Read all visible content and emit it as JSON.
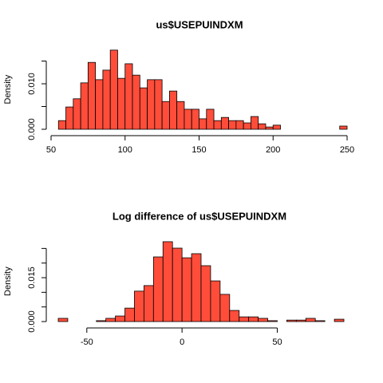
{
  "chart_data": [
    {
      "type": "histogram",
      "title": "us$USEPUINDXM",
      "ylabel": "Density",
      "color": "#ff4d3a",
      "bins": [
        55,
        60,
        65,
        70,
        75,
        80,
        85,
        90,
        95,
        100,
        105,
        110,
        115,
        120,
        125,
        130,
        135,
        140,
        145,
        150,
        155,
        160,
        165,
        170,
        175,
        180,
        185,
        190,
        195,
        200,
        205,
        210,
        215,
        220,
        225,
        230,
        235,
        240,
        245,
        250
      ],
      "values": [
        0.0019,
        0.0049,
        0.0067,
        0.0102,
        0.0147,
        0.0109,
        0.013,
        0.0174,
        0.0112,
        0.0144,
        0.0119,
        0.0091,
        0.0109,
        0.0109,
        0.0061,
        0.0084,
        0.0061,
        0.0044,
        0.0044,
        0.0023,
        0.0044,
        0.0019,
        0.0026,
        0.0019,
        0.0019,
        0.0014,
        0.0028,
        0.0012,
        0.0005,
        0.0009,
        0,
        0,
        0,
        0,
        0,
        0,
        0,
        0,
        0.0007
      ],
      "xlim": [
        50,
        250
      ],
      "xticks": [
        50,
        100,
        150,
        200,
        250
      ],
      "ylim": [
        0,
        0.0175
      ],
      "yticks": [
        {
          "value": 0,
          "label": "0.000"
        },
        {
          "value": 0.01,
          "label": "0.010"
        }
      ],
      "yminor": [
        0.005,
        0.015
      ]
    },
    {
      "type": "histogram",
      "title": "Log difference of us$USEPUINDXM",
      "ylabel": "Density",
      "color": "#ff4d3a",
      "bins": [
        -65,
        -60,
        -55,
        -50,
        -45,
        -40,
        -35,
        -30,
        -25,
        -20,
        -15,
        -10,
        -5,
        0,
        5,
        10,
        15,
        20,
        25,
        30,
        35,
        40,
        45,
        50,
        55,
        60,
        65,
        70,
        75,
        80,
        85
      ],
      "values": [
        0.0011,
        0,
        0,
        0,
        0.0003,
        0.0011,
        0.0019,
        0.0046,
        0.0104,
        0.0123,
        0.0221,
        0.0273,
        0.0251,
        0.0218,
        0.0232,
        0.0191,
        0.0139,
        0.0093,
        0.0038,
        0.0016,
        0.0016,
        0.0011,
        0.0003,
        0,
        0.0005,
        0.0005,
        0.0011,
        0.0003,
        0,
        0.0008
      ],
      "xlim": [
        -65,
        85
      ],
      "xticks": [
        -50,
        0,
        50
      ],
      "ylim": [
        0,
        0.0275
      ],
      "yticks": [
        {
          "value": 0,
          "label": "0.000"
        },
        {
          "value": 0.015,
          "label": "0.015"
        }
      ],
      "yminor": [
        0.005,
        0.01,
        0.02,
        0.025
      ]
    }
  ]
}
